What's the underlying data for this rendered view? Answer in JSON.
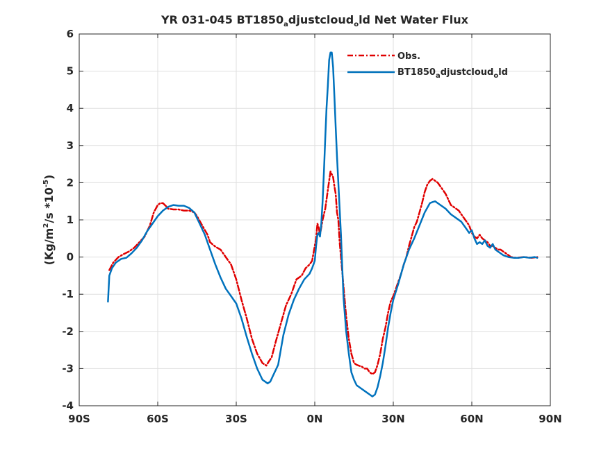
{
  "chart_data": {
    "type": "line",
    "title": {
      "part1": "YR 031-045 BT1850",
      "sub1": "a",
      "part2": "djustcloud",
      "sub2": "o",
      "part3": "ld  Net Water Flux"
    },
    "ylabel": {
      "part1": "(Kg/m",
      "sup1": "2",
      "part2": "/s *10",
      "sup2": "-5",
      "part3": ")"
    },
    "xlim": [
      -90,
      90
    ],
    "ylim": [
      -4,
      6
    ],
    "xticks": [
      {
        "value": -90,
        "label": "90S"
      },
      {
        "value": -60,
        "label": "60S"
      },
      {
        "value": -30,
        "label": "30S"
      },
      {
        "value": 0,
        "label": "0N"
      },
      {
        "value": 30,
        "label": "30N"
      },
      {
        "value": 60,
        "label": "60N"
      },
      {
        "value": 90,
        "label": "90N"
      }
    ],
    "yticks": [
      {
        "value": -4,
        "label": "-4"
      },
      {
        "value": -3,
        "label": "-3"
      },
      {
        "value": -2,
        "label": "-2"
      },
      {
        "value": -1,
        "label": "-1"
      },
      {
        "value": 0,
        "label": "0"
      },
      {
        "value": 1,
        "label": "1"
      },
      {
        "value": 2,
        "label": "2"
      },
      {
        "value": 3,
        "label": "3"
      },
      {
        "value": 4,
        "label": "4"
      },
      {
        "value": 5,
        "label": "5"
      },
      {
        "value": 6,
        "label": "6"
      }
    ],
    "grid": true,
    "legend_position": "top-right",
    "series": [
      {
        "name": "Obs.",
        "color": "#e00000",
        "style": "dash-dot",
        "legend": {
          "text": "Obs."
        },
        "points": [
          [
            -78.5,
            -0.35
          ],
          [
            -77,
            -0.15
          ],
          [
            -75,
            0.0
          ],
          [
            -73,
            0.08
          ],
          [
            -71,
            0.15
          ],
          [
            -69,
            0.25
          ],
          [
            -67,
            0.4
          ],
          [
            -65,
            0.55
          ],
          [
            -63,
            0.85
          ],
          [
            -61.5,
            1.2
          ],
          [
            -60,
            1.4
          ],
          [
            -59,
            1.45
          ],
          [
            -58,
            1.45
          ],
          [
            -57,
            1.38
          ],
          [
            -56,
            1.3
          ],
          [
            -54,
            1.28
          ],
          [
            -52,
            1.28
          ],
          [
            -50,
            1.25
          ],
          [
            -48,
            1.25
          ],
          [
            -46,
            1.2
          ],
          [
            -45,
            1.1
          ],
          [
            -43,
            0.85
          ],
          [
            -41,
            0.6
          ],
          [
            -40,
            0.4
          ],
          [
            -38,
            0.28
          ],
          [
            -36,
            0.2
          ],
          [
            -34,
            0.0
          ],
          [
            -32,
            -0.2
          ],
          [
            -30,
            -0.6
          ],
          [
            -28,
            -1.15
          ],
          [
            -26,
            -1.65
          ],
          [
            -24,
            -2.2
          ],
          [
            -22,
            -2.6
          ],
          [
            -20,
            -2.85
          ],
          [
            -18.5,
            -2.92
          ],
          [
            -17.5,
            -2.8
          ],
          [
            -16.5,
            -2.7
          ],
          [
            -15,
            -2.3
          ],
          [
            -13,
            -1.8
          ],
          [
            -11,
            -1.3
          ],
          [
            -9,
            -1.0
          ],
          [
            -7,
            -0.6
          ],
          [
            -5,
            -0.5
          ],
          [
            -3.5,
            -0.3
          ],
          [
            -2,
            -0.2
          ],
          [
            -1,
            -0.1
          ],
          [
            0,
            0.3
          ],
          [
            0.5,
            0.5
          ],
          [
            1,
            0.9
          ],
          [
            1.5,
            0.8
          ],
          [
            2,
            0.6
          ],
          [
            3,
            1.0
          ],
          [
            4,
            1.3
          ],
          [
            5,
            1.8
          ],
          [
            6,
            2.3
          ],
          [
            7,
            2.15
          ],
          [
            7.5,
            1.9
          ],
          [
            8,
            1.7
          ],
          [
            8.5,
            1.2
          ],
          [
            9,
            1.0
          ],
          [
            9.5,
            0.4
          ],
          [
            10,
            0.0
          ],
          [
            11,
            -0.8
          ],
          [
            12,
            -1.6
          ],
          [
            13,
            -2.2
          ],
          [
            14,
            -2.6
          ],
          [
            15,
            -2.85
          ],
          [
            16,
            -2.9
          ],
          [
            18,
            -2.95
          ],
          [
            19,
            -3.0
          ],
          [
            20,
            -3.0
          ],
          [
            21,
            -3.1
          ],
          [
            22,
            -3.15
          ],
          [
            23,
            -3.1
          ],
          [
            24,
            -2.9
          ],
          [
            25,
            -2.6
          ],
          [
            26,
            -2.2
          ],
          [
            27,
            -1.9
          ],
          [
            28,
            -1.5
          ],
          [
            29,
            -1.2
          ],
          [
            30,
            -1.05
          ],
          [
            31,
            -0.85
          ],
          [
            32,
            -0.65
          ],
          [
            33,
            -0.45
          ],
          [
            34,
            -0.2
          ],
          [
            35,
            0.0
          ],
          [
            36,
            0.3
          ],
          [
            37,
            0.55
          ],
          [
            38,
            0.8
          ],
          [
            39,
            0.95
          ],
          [
            40,
            1.2
          ],
          [
            41,
            1.45
          ],
          [
            42,
            1.75
          ],
          [
            43,
            1.95
          ],
          [
            44,
            2.05
          ],
          [
            45,
            2.1
          ],
          [
            46,
            2.05
          ],
          [
            47,
            2.0
          ],
          [
            48,
            1.9
          ],
          [
            49,
            1.8
          ],
          [
            50,
            1.7
          ],
          [
            51,
            1.55
          ],
          [
            52,
            1.4
          ],
          [
            53,
            1.35
          ],
          [
            54,
            1.3
          ],
          [
            55,
            1.25
          ],
          [
            56,
            1.15
          ],
          [
            57,
            1.05
          ],
          [
            58,
            0.95
          ],
          [
            59,
            0.85
          ],
          [
            60,
            0.65
          ],
          [
            61,
            0.55
          ],
          [
            62,
            0.5
          ],
          [
            63,
            0.6
          ],
          [
            64,
            0.5
          ],
          [
            65,
            0.45
          ],
          [
            66,
            0.4
          ],
          [
            67,
            0.3
          ],
          [
            68,
            0.3
          ],
          [
            69,
            0.25
          ],
          [
            70,
            0.2
          ],
          [
            71,
            0.2
          ],
          [
            72,
            0.15
          ],
          [
            73,
            0.1
          ],
          [
            74,
            0.05
          ],
          [
            75,
            0.0
          ],
          [
            77,
            -0.02
          ],
          [
            80,
            0.0
          ],
          [
            83,
            -0.02
          ],
          [
            85,
            0.0
          ]
        ]
      },
      {
        "name": "BT1850_adjustcloud_old",
        "color": "#0072bd",
        "style": "solid",
        "legend": {
          "part1": "BT1850",
          "sub1": "a",
          "part2": "djustcloud",
          "sub2": "o",
          "part3": "ld"
        },
        "points": [
          [
            -79,
            -1.2
          ],
          [
            -78.5,
            -0.5
          ],
          [
            -77.5,
            -0.3
          ],
          [
            -76,
            -0.15
          ],
          [
            -74,
            -0.05
          ],
          [
            -72,
            -0.02
          ],
          [
            -70,
            0.1
          ],
          [
            -68,
            0.25
          ],
          [
            -66,
            0.45
          ],
          [
            -64,
            0.7
          ],
          [
            -62,
            0.9
          ],
          [
            -60,
            1.1
          ],
          [
            -58,
            1.25
          ],
          [
            -56,
            1.35
          ],
          [
            -54,
            1.4
          ],
          [
            -52,
            1.38
          ],
          [
            -50,
            1.38
          ],
          [
            -48,
            1.32
          ],
          [
            -46,
            1.2
          ],
          [
            -44,
            0.9
          ],
          [
            -42,
            0.6
          ],
          [
            -40,
            0.2
          ],
          [
            -38,
            -0.2
          ],
          [
            -36,
            -0.55
          ],
          [
            -34,
            -0.85
          ],
          [
            -32,
            -1.05
          ],
          [
            -30,
            -1.25
          ],
          [
            -28,
            -1.65
          ],
          [
            -26,
            -2.15
          ],
          [
            -24,
            -2.6
          ],
          [
            -22,
            -3.0
          ],
          [
            -20,
            -3.3
          ],
          [
            -18,
            -3.4
          ],
          [
            -17,
            -3.35
          ],
          [
            -16,
            -3.2
          ],
          [
            -14,
            -2.9
          ],
          [
            -12,
            -2.1
          ],
          [
            -10,
            -1.55
          ],
          [
            -8,
            -1.15
          ],
          [
            -6,
            -0.85
          ],
          [
            -4,
            -0.6
          ],
          [
            -2,
            -0.45
          ],
          [
            -1,
            -0.3
          ],
          [
            0,
            -0.1
          ],
          [
            0.5,
            0.3
          ],
          [
            1,
            0.6
          ],
          [
            1.5,
            0.65
          ],
          [
            2,
            0.55
          ],
          [
            2.5,
            0.9
          ],
          [
            3,
            1.5
          ],
          [
            3.5,
            2.3
          ],
          [
            4,
            3.2
          ],
          [
            4.5,
            4.0
          ],
          [
            5,
            4.6
          ],
          [
            5.5,
            5.3
          ],
          [
            6,
            5.5
          ],
          [
            6.5,
            5.5
          ],
          [
            7,
            5.1
          ],
          [
            7.5,
            4.3
          ],
          [
            8,
            3.5
          ],
          [
            8.5,
            2.7
          ],
          [
            9,
            2.0
          ],
          [
            9.5,
            1.3
          ],
          [
            10,
            0.6
          ],
          [
            10.5,
            -0.3
          ],
          [
            11,
            -1.1
          ],
          [
            12,
            -2.0
          ],
          [
            13,
            -2.6
          ],
          [
            14,
            -3.1
          ],
          [
            15,
            -3.3
          ],
          [
            16,
            -3.45
          ],
          [
            18,
            -3.55
          ],
          [
            20,
            -3.65
          ],
          [
            21,
            -3.7
          ],
          [
            22,
            -3.75
          ],
          [
            23,
            -3.7
          ],
          [
            24,
            -3.5
          ],
          [
            25,
            -3.2
          ],
          [
            26,
            -2.85
          ],
          [
            27,
            -2.4
          ],
          [
            28,
            -1.9
          ],
          [
            29,
            -1.5
          ],
          [
            30,
            -1.15
          ],
          [
            32,
            -0.7
          ],
          [
            34,
            -0.2
          ],
          [
            36,
            0.2
          ],
          [
            38,
            0.5
          ],
          [
            40,
            0.85
          ],
          [
            42,
            1.2
          ],
          [
            44,
            1.45
          ],
          [
            45,
            1.48
          ],
          [
            46,
            1.5
          ],
          [
            47,
            1.45
          ],
          [
            48,
            1.4
          ],
          [
            50,
            1.3
          ],
          [
            52,
            1.15
          ],
          [
            54,
            1.05
          ],
          [
            56,
            0.95
          ],
          [
            58,
            0.75
          ],
          [
            59,
            0.65
          ],
          [
            60,
            0.72
          ],
          [
            61,
            0.5
          ],
          [
            62,
            0.35
          ],
          [
            63,
            0.4
          ],
          [
            64,
            0.35
          ],
          [
            65,
            0.45
          ],
          [
            66,
            0.3
          ],
          [
            67,
            0.25
          ],
          [
            68,
            0.35
          ],
          [
            69,
            0.2
          ],
          [
            70,
            0.15
          ],
          [
            72,
            0.05
          ],
          [
            74,
            0.0
          ],
          [
            76,
            -0.02
          ],
          [
            78,
            -0.02
          ],
          [
            80,
            0.0
          ],
          [
            82,
            -0.02
          ],
          [
            84,
            0.0
          ],
          [
            85,
            -0.02
          ]
        ]
      }
    ]
  }
}
